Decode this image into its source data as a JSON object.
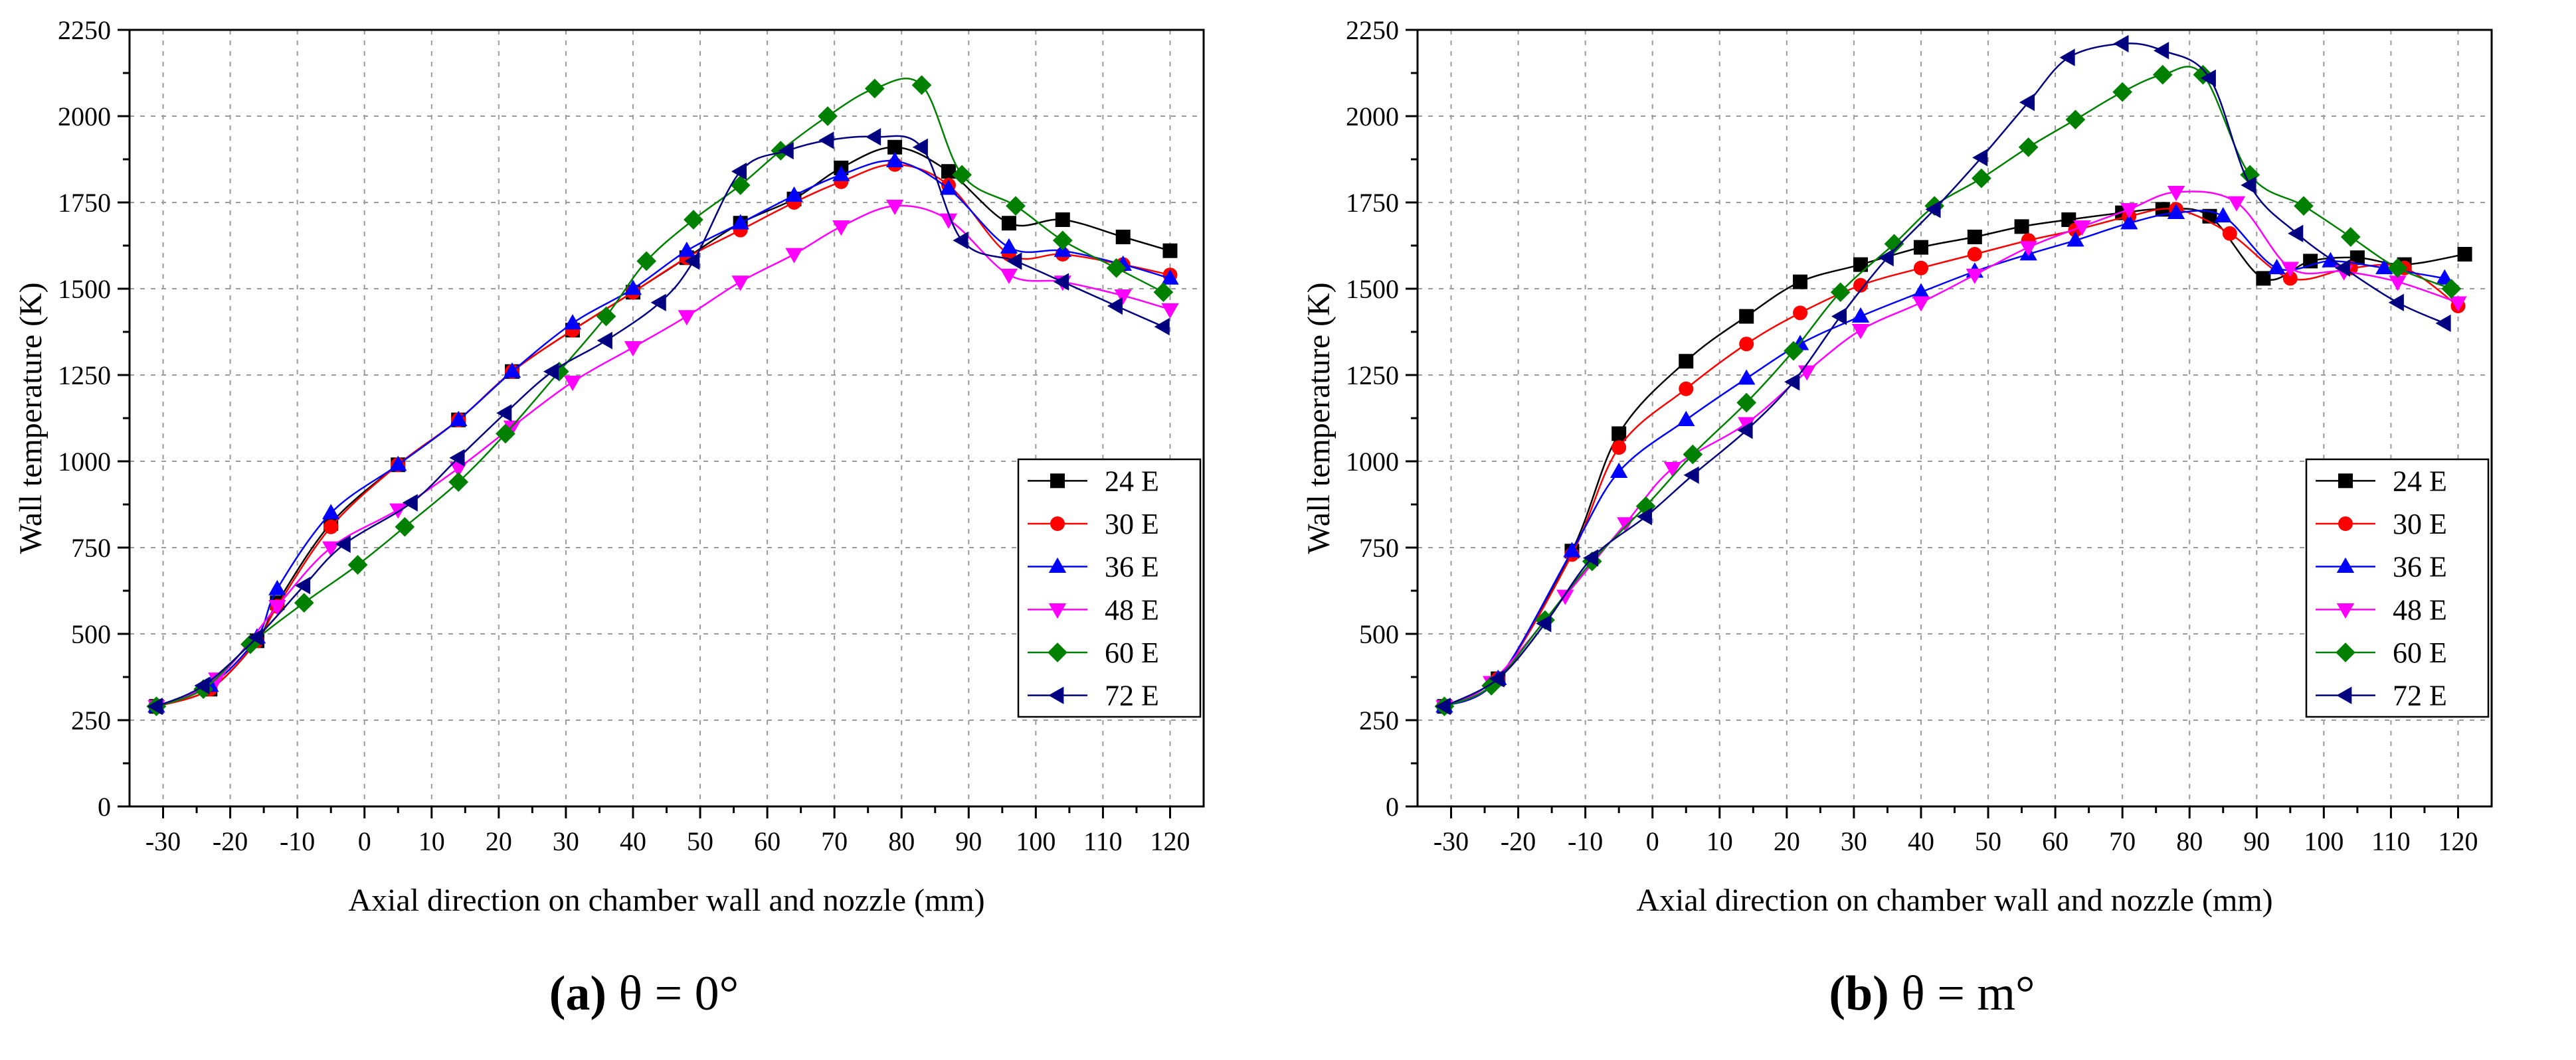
{
  "figure": {
    "captions": [
      {
        "label": "(a)",
        "text": "θ = 0°"
      },
      {
        "label": "(b)",
        "text": "θ = m°"
      }
    ]
  },
  "chart_data": [
    {
      "type": "line",
      "panel": "(a) θ = 0°",
      "xlabel": "Axial direction on chamber wall and nozzle (mm)",
      "ylabel": "Wall temperature (K)",
      "xlim": [
        -35,
        125
      ],
      "ylim": [
        0,
        2250
      ],
      "xticks": [
        -30,
        -20,
        -10,
        0,
        10,
        20,
        30,
        40,
        50,
        60,
        70,
        80,
        90,
        100,
        110,
        120
      ],
      "yticks": [
        0,
        250,
        500,
        750,
        1000,
        1250,
        1500,
        1750,
        2000,
        2250
      ],
      "grid": true,
      "legend_position": "lower-right",
      "series": [
        {
          "name": "24 E",
          "color": "#000000",
          "marker": "square",
          "x": [
            -31,
            -23,
            -16,
            -13,
            -5,
            5,
            14,
            22,
            31,
            40,
            48,
            56,
            64,
            71,
            79,
            87,
            96,
            104,
            113,
            120
          ],
          "y": [
            290,
            340,
            480,
            590,
            820,
            990,
            1120,
            1260,
            1380,
            1490,
            1590,
            1690,
            1760,
            1850,
            1910,
            1840,
            1690,
            1700,
            1650,
            1610
          ]
        },
        {
          "name": "30 E",
          "color": "#ff0000",
          "marker": "circle",
          "x": [
            -31,
            -23,
            -16,
            -13,
            -5,
            5,
            14,
            22,
            31,
            40,
            48,
            56,
            64,
            71,
            79,
            87,
            96,
            104,
            113,
            120
          ],
          "y": [
            290,
            340,
            480,
            580,
            810,
            990,
            1120,
            1260,
            1380,
            1490,
            1590,
            1670,
            1750,
            1810,
            1860,
            1800,
            1600,
            1600,
            1570,
            1540
          ]
        },
        {
          "name": "36 E",
          "color": "#0000ff",
          "marker": "triangle-up",
          "x": [
            -31,
            -23,
            -16,
            -13,
            -5,
            5,
            14,
            22,
            31,
            40,
            48,
            56,
            64,
            71,
            79,
            87,
            96,
            104,
            113,
            120
          ],
          "y": [
            290,
            350,
            490,
            630,
            850,
            990,
            1120,
            1260,
            1400,
            1500,
            1610,
            1690,
            1770,
            1830,
            1870,
            1790,
            1620,
            1610,
            1570,
            1530
          ]
        },
        {
          "name": "48 E",
          "color": "#ff00ff",
          "marker": "triangle-down",
          "x": [
            -31,
            -22,
            -13,
            -5,
            5,
            14,
            22,
            31,
            40,
            48,
            56,
            64,
            71,
            79,
            87,
            96,
            104,
            113,
            120
          ],
          "y": [
            290,
            370,
            580,
            750,
            860,
            980,
            1100,
            1230,
            1330,
            1420,
            1520,
            1600,
            1680,
            1740,
            1700,
            1540,
            1520,
            1480,
            1440
          ]
        },
        {
          "name": "60 E",
          "color": "#008000",
          "marker": "diamond",
          "x": [
            -31,
            -24,
            -17,
            -9,
            -1,
            6,
            14,
            21,
            29,
            36,
            42,
            49,
            56,
            62,
            69,
            76,
            83,
            89,
            97,
            104,
            112,
            119
          ],
          "y": [
            290,
            340,
            470,
            590,
            700,
            810,
            940,
            1080,
            1260,
            1420,
            1580,
            1700,
            1800,
            1900,
            2000,
            2080,
            2090,
            1830,
            1740,
            1640,
            1560,
            1490
          ]
        },
        {
          "name": "72 E",
          "color": "#000080",
          "marker": "triangle-left",
          "x": [
            -31,
            -24,
            -16,
            -9,
            -3,
            7,
            14,
            21,
            28,
            36,
            44,
            49,
            56,
            63,
            69,
            76,
            83,
            89,
            97,
            104,
            112,
            119
          ],
          "y": [
            290,
            350,
            490,
            640,
            760,
            880,
            1010,
            1140,
            1260,
            1350,
            1460,
            1580,
            1840,
            1900,
            1930,
            1940,
            1910,
            1640,
            1580,
            1520,
            1450,
            1390
          ]
        }
      ]
    },
    {
      "type": "line",
      "panel": "(b) θ = m°",
      "xlabel": "Axial direction on chamber wall and nozzle (mm)",
      "ylabel": "Wall temperature (K)",
      "xlim": [
        -35,
        125
      ],
      "ylim": [
        0,
        2250
      ],
      "xticks": [
        -30,
        -20,
        -10,
        0,
        10,
        20,
        30,
        40,
        50,
        60,
        70,
        80,
        90,
        100,
        110,
        120
      ],
      "yticks": [
        0,
        250,
        500,
        750,
        1000,
        1250,
        1500,
        1750,
        2000,
        2250
      ],
      "grid": true,
      "legend_position": "lower-right",
      "series": [
        {
          "name": "24 E",
          "color": "#000000",
          "marker": "square",
          "x": [
            -31,
            -23,
            -12,
            -5,
            5,
            14,
            22,
            31,
            40,
            48,
            55,
            62,
            70,
            76,
            83,
            91,
            98,
            105,
            112,
            121
          ],
          "y": [
            290,
            370,
            740,
            1080,
            1290,
            1420,
            1520,
            1570,
            1620,
            1650,
            1680,
            1700,
            1720,
            1730,
            1710,
            1530,
            1580,
            1590,
            1570,
            1600
          ]
        },
        {
          "name": "30 E",
          "color": "#ff0000",
          "marker": "circle",
          "x": [
            -31,
            -23,
            -12,
            -5,
            5,
            14,
            22,
            31,
            40,
            48,
            56,
            63,
            71,
            78,
            86,
            95,
            104,
            112,
            120
          ],
          "y": [
            290,
            370,
            730,
            1040,
            1210,
            1340,
            1430,
            1510,
            1560,
            1600,
            1640,
            1670,
            1710,
            1730,
            1660,
            1530,
            1560,
            1560,
            1450
          ]
        },
        {
          "name": "36 E",
          "color": "#0000ff",
          "marker": "triangle-up",
          "x": [
            -31,
            -23,
            -12,
            -5,
            5,
            14,
            22,
            31,
            40,
            48,
            56,
            63,
            71,
            78,
            85,
            93,
            101,
            109,
            118
          ],
          "y": [
            290,
            370,
            740,
            970,
            1120,
            1240,
            1340,
            1420,
            1490,
            1550,
            1600,
            1640,
            1690,
            1720,
            1710,
            1560,
            1580,
            1560,
            1530
          ]
        },
        {
          "name": "48 E",
          "color": "#ff00ff",
          "marker": "triangle-down",
          "x": [
            -31,
            -24,
            -13,
            -4,
            3,
            14,
            23,
            31,
            40,
            48,
            56,
            64,
            71,
            78,
            87,
            95,
            103,
            111,
            120
          ],
          "y": [
            290,
            360,
            610,
            820,
            980,
            1110,
            1260,
            1380,
            1460,
            1540,
            1620,
            1680,
            1730,
            1780,
            1750,
            1560,
            1550,
            1520,
            1460
          ]
        },
        {
          "name": "60 E",
          "color": "#008000",
          "marker": "diamond",
          "x": [
            -31,
            -24,
            -16,
            -9,
            -1,
            6,
            14,
            21,
            28,
            36,
            42,
            49,
            56,
            63,
            70,
            76,
            82,
            89,
            97,
            104,
            111,
            119
          ],
          "y": [
            290,
            350,
            540,
            710,
            870,
            1020,
            1170,
            1320,
            1490,
            1630,
            1740,
            1820,
            1910,
            1990,
            2070,
            2120,
            2120,
            1830,
            1740,
            1650,
            1560,
            1500
          ]
        },
        {
          "name": "72 E",
          "color": "#000080",
          "marker": "triangle-left",
          "x": [
            -31,
            -23,
            -16,
            -9,
            -1,
            6,
            14,
            21,
            28,
            35,
            42,
            49,
            56,
            62,
            70,
            76,
            83,
            89,
            96,
            103,
            111,
            118
          ],
          "y": [
            290,
            370,
            530,
            720,
            840,
            960,
            1090,
            1230,
            1420,
            1590,
            1730,
            1880,
            2040,
            2170,
            2210,
            2190,
            2110,
            1800,
            1660,
            1560,
            1460,
            1400
          ]
        }
      ]
    }
  ]
}
